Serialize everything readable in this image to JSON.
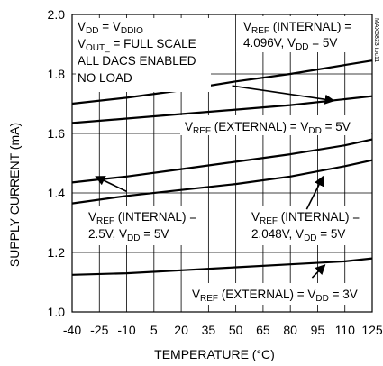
{
  "chart_data": {
    "type": "line",
    "xlabel": "TEMPERATURE (°C)",
    "ylabel": "SUPPLY CURRENT (mA)",
    "xlim": [
      -40,
      125
    ],
    "ylim": [
      1.0,
      2.0
    ],
    "x_ticks": [
      -40,
      -25,
      -10,
      5,
      20,
      35,
      50,
      65,
      80,
      95,
      110,
      125
    ],
    "y_ticks": [
      "1.0",
      "1.2",
      "1.4",
      "1.6",
      "1.8",
      "2.0"
    ],
    "grid": true,
    "side_label": "MAX5823 toc11",
    "conditions": [
      "VDD = VDDIO",
      "VOUT_ = FULL SCALE",
      "ALL DACS ENABLED",
      "NO LOAD"
    ],
    "series": [
      {
        "x": [
          -40,
          -10,
          20,
          50,
          80,
          110,
          125
        ],
        "y": [
          1.7,
          1.72,
          1.745,
          1.775,
          1.8,
          1.83,
          1.845
        ]
      },
      {
        "x": [
          -40,
          -10,
          20,
          50,
          80,
          110,
          125
        ],
        "y": [
          1.635,
          1.65,
          1.665,
          1.68,
          1.695,
          1.715,
          1.725
        ]
      },
      {
        "x": [
          -40,
          -10,
          20,
          50,
          80,
          110,
          125
        ],
        "y": [
          1.435,
          1.455,
          1.48,
          1.505,
          1.53,
          1.56,
          1.58
        ]
      },
      {
        "x": [
          -40,
          -10,
          20,
          50,
          80,
          110,
          125
        ],
        "y": [
          1.365,
          1.39,
          1.41,
          1.43,
          1.455,
          1.49,
          1.51
        ]
      },
      {
        "x": [
          -40,
          -10,
          20,
          50,
          80,
          110,
          125
        ],
        "y": [
          1.125,
          1.13,
          1.14,
          1.15,
          1.16,
          1.17,
          1.18
        ]
      }
    ],
    "annotations": [
      {
        "id": "vref-internal-4096",
        "lines": [
          [
            [
              "V",
              "n"
            ],
            [
              "REF",
              "s"
            ],
            [
              " (INTERNAL) =",
              "n"
            ]
          ],
          [
            [
              "4.096V, V",
              "n"
            ],
            [
              "DD",
              "s"
            ],
            [
              " = 5V",
              "n"
            ]
          ]
        ],
        "arrow": [
          {
            "x": 48,
            "y": 1.76
          },
          {
            "x": 104,
            "y": 1.71
          }
        ]
      },
      {
        "id": "vref-external-5v",
        "lines": [
          [
            [
              "V",
              "n"
            ],
            [
              "REF",
              "s"
            ],
            [
              " (EXTERNAL) = V",
              "n"
            ],
            [
              "DD",
              "s"
            ],
            [
              " = 5V",
              "n"
            ]
          ]
        ],
        "arrow": null
      },
      {
        "id": "vref-internal-25",
        "lines": [
          [
            [
              "V",
              "n"
            ],
            [
              "REF",
              "s"
            ],
            [
              " (INTERNAL) =",
              "n"
            ]
          ],
          [
            [
              "2.5V, V",
              "n"
            ],
            [
              "DD",
              "s"
            ],
            [
              " = 5V",
              "n"
            ]
          ]
        ],
        "arrow": [
          {
            "x": -10,
            "y": 1.405
          },
          {
            "x": -27,
            "y": 1.455
          }
        ]
      },
      {
        "id": "vref-internal-2048",
        "lines": [
          [
            [
              "V",
              "n"
            ],
            [
              "REF",
              "s"
            ],
            [
              " (INTERNAL) =",
              "n"
            ]
          ],
          [
            [
              "2.048V, V",
              "n"
            ],
            [
              "DD",
              "s"
            ],
            [
              " = 5V",
              "n"
            ]
          ]
        ],
        "arrow": [
          {
            "x": 89,
            "y": 1.345
          },
          {
            "x": 98,
            "y": 1.455
          }
        ]
      },
      {
        "id": "vref-external-3v",
        "lines": [
          [
            [
              "V",
              "n"
            ],
            [
              "REF",
              "s"
            ],
            [
              " (EXTERNAL) = V",
              "n"
            ],
            [
              "DD",
              "s"
            ],
            [
              " = 3V",
              "n"
            ]
          ]
        ],
        "arrow": [
          {
            "x": 92,
            "y": 1.115
          },
          {
            "x": 99,
            "y": 1.158
          }
        ]
      }
    ],
    "conditions_rich": [
      [
        [
          "V",
          "n"
        ],
        [
          "DD",
          "s"
        ],
        [
          " = V",
          "n"
        ],
        [
          "DDIO",
          "s"
        ]
      ],
      [
        [
          "V",
          "n"
        ],
        [
          "OUT_",
          "s"
        ],
        [
          " = FULL SCALE",
          "n"
        ]
      ],
      [
        [
          "ALL DACS ENABLED",
          "n"
        ]
      ],
      [
        [
          "NO LOAD",
          "n"
        ]
      ]
    ]
  }
}
